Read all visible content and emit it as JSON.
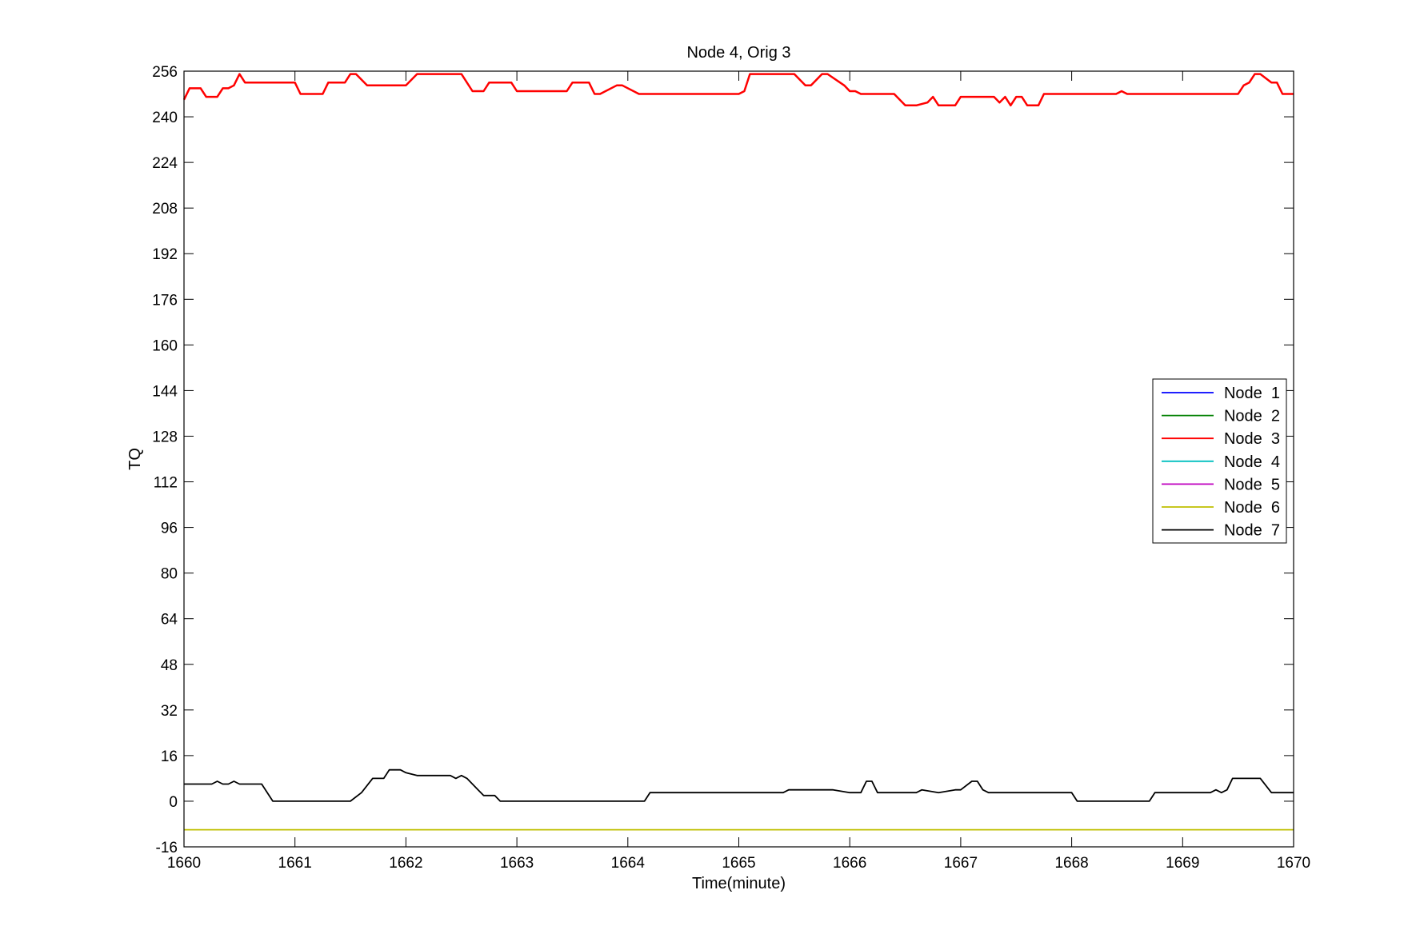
{
  "chart_data": {
    "type": "line",
    "title": "Node 4, Orig 3",
    "xlabel": "Time(minute)",
    "ylabel": "TQ",
    "xlim": [
      1660,
      1670
    ],
    "ylim": [
      -16,
      256
    ],
    "xticks": [
      "1660",
      "1661",
      "1662",
      "1663",
      "1664",
      "1665",
      "1666",
      "1667",
      "1668",
      "1669",
      "1670"
    ],
    "yticks": [
      "-16",
      "0",
      "16",
      "32",
      "48",
      "64",
      "80",
      "96",
      "112",
      "128",
      "144",
      "160",
      "176",
      "192",
      "208",
      "224",
      "240",
      "256"
    ],
    "grid": false,
    "legend_position": "right-middle",
    "series": [
      {
        "name": "Node  1",
        "color": "#0000ff",
        "x": [],
        "y": []
      },
      {
        "name": "Node  2",
        "color": "#008000",
        "x": [],
        "y": []
      },
      {
        "name": "Node  3",
        "color": "#ff0000",
        "x": [
          1660,
          1660.05,
          1660.15,
          1660.2,
          1660.25,
          1660.3,
          1660.35,
          1660.4,
          1660.45,
          1660.5,
          1660.55,
          1660.6,
          1661.0,
          1661.05,
          1661.25,
          1661.3,
          1661.45,
          1661.5,
          1661.55,
          1661.65,
          1661.7,
          1661.75,
          1662.0,
          1662.05,
          1662.1,
          1662.4,
          1662.5,
          1662.6,
          1662.7,
          1662.75,
          1662.95,
          1663.0,
          1663.05,
          1663.45,
          1663.5,
          1663.65,
          1663.7,
          1663.75,
          1663.9,
          1663.95,
          1664.1,
          1664.2,
          1664.5,
          1665.0,
          1665.05,
          1665.1,
          1665.15,
          1665.5,
          1665.6,
          1665.65,
          1665.75,
          1665.8,
          1665.95,
          1666.0,
          1666.05,
          1666.1,
          1666.4,
          1666.5,
          1666.6,
          1666.7,
          1666.75,
          1666.8,
          1666.95,
          1667.0,
          1667.05,
          1667.3,
          1667.35,
          1667.4,
          1667.45,
          1667.5,
          1667.55,
          1667.6,
          1667.7,
          1667.75,
          1667.9,
          1667.95,
          1668.0,
          1668.25,
          1668.4,
          1668.45,
          1668.5,
          1669.0,
          1669.4,
          1669.5,
          1669.55,
          1669.6,
          1669.65,
          1669.7,
          1669.8,
          1669.85,
          1669.9,
          1670
        ],
        "y": [
          246,
          250,
          250,
          247,
          247,
          247,
          250,
          250,
          251,
          255,
          252,
          252,
          252,
          248,
          248,
          252,
          252,
          255,
          255,
          251,
          251,
          251,
          251,
          253,
          255,
          255,
          255,
          249,
          249,
          252,
          252,
          249,
          249,
          249,
          252,
          252,
          248,
          248,
          251,
          251,
          248,
          248,
          248,
          248,
          249,
          255,
          255,
          255,
          251,
          251,
          255,
          255,
          251,
          249,
          249,
          248,
          248,
          244,
          244,
          245,
          247,
          244,
          244,
          247,
          247,
          247,
          245,
          247,
          244,
          247,
          247,
          244,
          244,
          248,
          248,
          248,
          248,
          248,
          248,
          249,
          248,
          248,
          248,
          248,
          251,
          252,
          255,
          255,
          252,
          252,
          248,
          248
        ]
      },
      {
        "name": "Node  4",
        "color": "#00bfbf",
        "x": [],
        "y": []
      },
      {
        "name": "Node  5",
        "color": "#bf00bf",
        "x": [],
        "y": []
      },
      {
        "name": "Node  6",
        "color": "#bfbf00",
        "x": [
          1660,
          1670
        ],
        "y": [
          -10,
          -10
        ]
      },
      {
        "name": "Node  7",
        "color": "#000000",
        "x": [
          1660,
          1660.25,
          1660.3,
          1660.35,
          1660.4,
          1660.45,
          1660.5,
          1660.7,
          1660.8,
          1661.0,
          1661.5,
          1661.6,
          1661.7,
          1661.8,
          1661.85,
          1661.95,
          1662.0,
          1662.1,
          1662.4,
          1662.45,
          1662.5,
          1662.55,
          1662.65,
          1662.7,
          1662.8,
          1662.85,
          1663.0,
          1663.5,
          1664.0,
          1664.15,
          1664.2,
          1664.5,
          1665.0,
          1665.4,
          1665.45,
          1665.85,
          1666.0,
          1666.1,
          1666.15,
          1666.2,
          1666.25,
          1666.6,
          1666.65,
          1666.8,
          1666.95,
          1667.0,
          1667.1,
          1667.15,
          1667.2,
          1667.25,
          1667.3,
          1667.6,
          1668.0,
          1668.05,
          1668.4,
          1668.7,
          1668.75,
          1669.0,
          1669.25,
          1669.3,
          1669.35,
          1669.4,
          1669.45,
          1669.5,
          1669.7,
          1669.8,
          1670
        ],
        "y": [
          6,
          6,
          7,
          6,
          6,
          7,
          6,
          6,
          0,
          0,
          0,
          3,
          8,
          8,
          11,
          11,
          10,
          9,
          9,
          8,
          9,
          8,
          4,
          2,
          2,
          0,
          0,
          0,
          0,
          0,
          3,
          3,
          3,
          3,
          4,
          4,
          3,
          3,
          7,
          7,
          3,
          3,
          4,
          3,
          4,
          4,
          7,
          7,
          4,
          3,
          3,
          3,
          3,
          0,
          0,
          0,
          3,
          3,
          3,
          4,
          3,
          4,
          8,
          8,
          8,
          3,
          3
        ]
      }
    ]
  }
}
